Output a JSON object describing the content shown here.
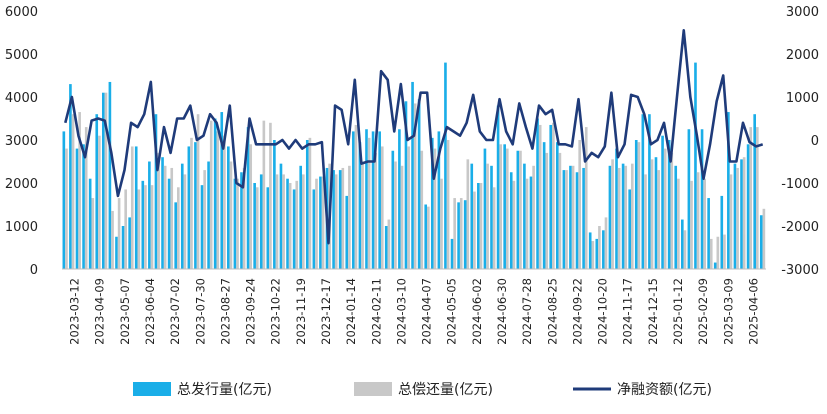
{
  "chart_data": {
    "type": "bar+line",
    "x_tick_labels": [
      "2023-03-12",
      "2023-04-09",
      "2023-05-07",
      "2023-06-04",
      "2023-07-02",
      "2023-07-30",
      "2023-08-27",
      "2023-09-24",
      "2023-10-22",
      "2023-11-19",
      "2023-12-17",
      "2024-01-14",
      "2024-02-11",
      "2024-03-10",
      "2024-04-07",
      "2024-05-05",
      "2024-06-02",
      "2024-06-30",
      "2024-07-28",
      "2024-08-25",
      "2024-09-22",
      "2024-10-20",
      "2024-11-17",
      "2024-12-15",
      "2025-01-12",
      "2025-02-09",
      "2025-03-09",
      "2025-04-06"
    ],
    "y_left": {
      "min": 0,
      "max": 6000,
      "ticks": [
        0,
        1000,
        2000,
        3000,
        4000,
        5000,
        6000
      ]
    },
    "y_right": {
      "min": -3000,
      "max": 3000,
      "ticks": [
        -3000,
        -2000,
        -1000,
        0,
        1000,
        2000,
        3000
      ]
    },
    "series": [
      {
        "name": "总发行量(亿元)",
        "type": "bar",
        "axis": "left",
        "color": "#1aaee8",
        "values": [
          3200,
          4300,
          2800,
          2900,
          2100,
          3600,
          4100,
          4350,
          750,
          1000,
          1200,
          2850,
          2050,
          2500,
          3600,
          2600,
          2100,
          1550,
          2450,
          2850,
          2950,
          1950,
          2500,
          3500,
          3650,
          2850,
          2100,
          2250,
          3300,
          2000,
          2200,
          1900,
          3000,
          2450,
          2100,
          1850,
          2400,
          3000,
          1850,
          2150,
          2350,
          2300,
          2300,
          1700,
          3200,
          2950,
          3250,
          3200,
          3200,
          1000,
          2750,
          3250,
          3900,
          4350,
          3950,
          1500,
          3050,
          3200,
          4800,
          700,
          1550,
          1600,
          2450,
          2000,
          2800,
          2400,
          3800,
          2900,
          2250,
          2750,
          2450,
          2150,
          3500,
          2950,
          3350,
          2950,
          2300,
          2400,
          2250,
          2350,
          850,
          700,
          900,
          2400,
          2800,
          2450,
          1850,
          3000,
          3600,
          3600,
          2600,
          3100,
          3000,
          2400,
          1150,
          3250,
          4800,
          3250,
          1650,
          150,
          1700,
          3650,
          2450,
          2550,
          2900,
          3600,
          1250
        ]
      },
      {
        "name": "总偿还量(亿元)",
        "type": "bar",
        "axis": "left",
        "color": "#c8c8c8",
        "values": [
          2800,
          3600,
          3650,
          3300,
          1650,
          3100,
          4100,
          1350,
          1650,
          1850,
          2850,
          1850,
          1950,
          1950,
          2700,
          2400,
          2350,
          1900,
          2200,
          3050,
          3600,
          2300,
          3450,
          3200,
          3100,
          2500,
          2100,
          2350,
          2900,
          1900,
          3450,
          3400,
          2200,
          2200,
          2000,
          2050,
          2200,
          3050,
          2100,
          2150,
          2450,
          2200,
          2350,
          2400,
          3350,
          2500,
          3050,
          2700,
          2850,
          1150,
          2500,
          2400,
          2850,
          3850,
          2750,
          1450,
          2800,
          2100,
          3000,
          1650,
          1650,
          2550,
          1800,
          2000,
          2450,
          1900,
          2900,
          2800,
          2050,
          2750,
          2100,
          2400,
          3350,
          2700,
          3400,
          2700,
          2300,
          2400,
          3000,
          3300,
          650,
          1000,
          1200,
          2550,
          2350,
          2400,
          2450,
          2950,
          2200,
          2550,
          2300,
          2800,
          2700,
          2100,
          900,
          2050,
          2250,
          2100,
          700,
          750,
          800,
          2200,
          2350,
          2600,
          3300,
          3300,
          1400
        ]
      },
      {
        "name": "净融资额(亿元)",
        "type": "line",
        "axis": "right",
        "color": "#1f3b7a",
        "values": [
          400,
          1000,
          100,
          -400,
          450,
          500,
          450,
          -300,
          -1300,
          -700,
          400,
          300,
          600,
          1350,
          -700,
          300,
          -300,
          500,
          500,
          800,
          0,
          100,
          600,
          400,
          -200,
          800,
          -1000,
          -1100,
          500,
          -100,
          -100,
          -100,
          -100,
          0,
          -200,
          0,
          -200,
          -100,
          -100,
          -50,
          -2400,
          800,
          700,
          -100,
          1400,
          -550,
          -500,
          -500,
          1600,
          1400,
          200,
          1300,
          0,
          100,
          1100,
          1100,
          -900,
          -200,
          300,
          200,
          100,
          400,
          1050,
          200,
          0,
          0,
          950,
          200,
          -100,
          850,
          300,
          -200,
          800,
          600,
          700,
          -100,
          -100,
          -150,
          950,
          -500,
          -300,
          -400,
          -150,
          1100,
          -400,
          -100,
          1050,
          1000,
          600,
          -100,
          0,
          400,
          -500,
          1050,
          2550,
          1000,
          100,
          -900,
          -100,
          900,
          1500,
          -500,
          -500,
          400,
          -50,
          -150,
          -100
        ]
      }
    ],
    "legend_position": "bottom",
    "grid": false
  }
}
